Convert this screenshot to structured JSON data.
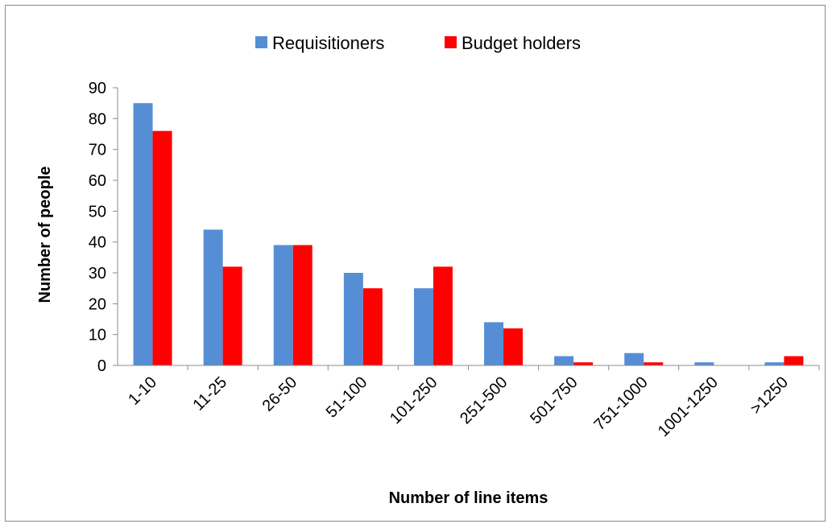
{
  "chart_data": {
    "type": "bar",
    "title": "",
    "xlabel": "Number of line items",
    "ylabel": "Number of people",
    "ylim": [
      0,
      90
    ],
    "yticks": [
      0,
      10,
      20,
      30,
      40,
      50,
      60,
      70,
      80,
      90
    ],
    "grid": false,
    "legend_position": "top",
    "categories": [
      "1-10",
      "11-25",
      "26-50",
      "51-100",
      "101-250",
      "251-500",
      "501-750",
      "751-1000",
      "1001-1250",
      ">1250"
    ],
    "series": [
      {
        "name": "Requisitioners",
        "color": "#558ED5",
        "values": [
          85,
          44,
          39,
          30,
          25,
          14,
          3,
          4,
          1,
          1
        ]
      },
      {
        "name": "Budget holders",
        "color": "#FF0000",
        "values": [
          76,
          32,
          39,
          25,
          32,
          12,
          1,
          1,
          0,
          3
        ]
      }
    ]
  }
}
